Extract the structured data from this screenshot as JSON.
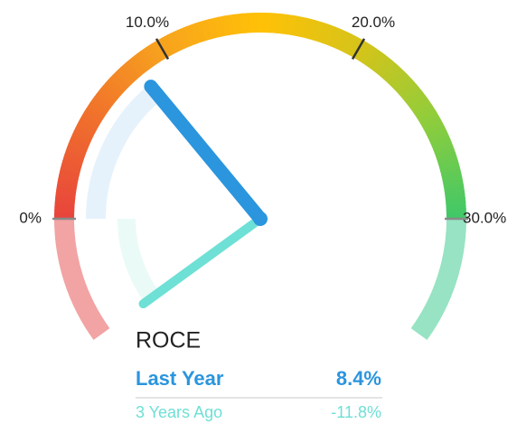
{
  "chart_data": {
    "type": "gauge",
    "title": "ROCE",
    "ylim": [
      -6,
      36
    ],
    "yticks": [
      {
        "value": 0,
        "label": "0%"
      },
      {
        "value": 10,
        "label": "10.0%"
      },
      {
        "value": 20,
        "label": "20.0%"
      },
      {
        "value": 30,
        "label": "30.0%"
      }
    ],
    "series": [
      {
        "name": "Last Year",
        "color": "#2b95de",
        "values": [
          8.4
        ],
        "value_labels": [
          "8.4%"
        ]
      },
      {
        "name": "3 Years Ago",
        "color": "#6ee0d5",
        "values": [
          -11.8
        ],
        "value_labels": [
          "-11.8%"
        ]
      }
    ]
  }
}
